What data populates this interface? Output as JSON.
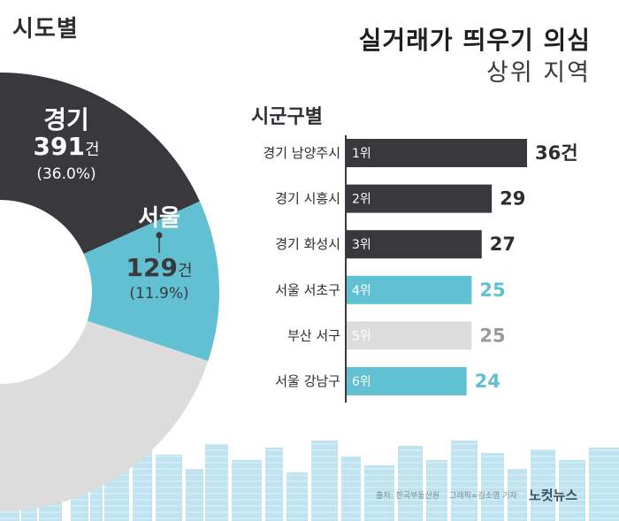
{
  "header": {
    "sido_title": "시도별",
    "main_title": "실거래가 띄우기 의심",
    "sub_title": "상위 지역",
    "gungu_title": "시군구별"
  },
  "colors": {
    "dark": "#39383d",
    "teal": "#62c0d3",
    "light": "#dcdcdc",
    "skyline": "#bfe4ef"
  },
  "chart_data": [
    {
      "type": "pie",
      "title": "시도별",
      "slices": [
        {
          "label": "경기",
          "value": 391,
          "count_text": "391",
          "unit": "건",
          "percent": "(36.0%)",
          "color": "dark"
        },
        {
          "label": "서울",
          "value": 129,
          "count_text": "129",
          "unit": "건",
          "percent": "(11.9%)",
          "color": "teal"
        },
        {
          "label": "",
          "value": 566,
          "color": "light"
        }
      ]
    },
    {
      "type": "bar",
      "orientation": "horizontal",
      "title": "시군구별",
      "categories": [
        "경기 남양주시",
        "경기 시흥시",
        "경기 화성시",
        "서울 서초구",
        "부산 서구",
        "서울 강남구"
      ],
      "ranks": [
        "1위",
        "2위",
        "3위",
        "4위",
        "5위",
        "6위"
      ],
      "values": [
        36,
        29,
        27,
        25,
        25,
        24
      ],
      "value_labels": [
        "36건",
        "29",
        "27",
        "25",
        "25",
        "24"
      ],
      "colors": [
        "dark",
        "dark",
        "dark",
        "teal",
        "light",
        "teal"
      ]
    }
  ],
  "footer": {
    "source": "출처: 한국부동산원",
    "credit": "그래픽=김소영 기자",
    "logo": "노컷뉴스"
  }
}
